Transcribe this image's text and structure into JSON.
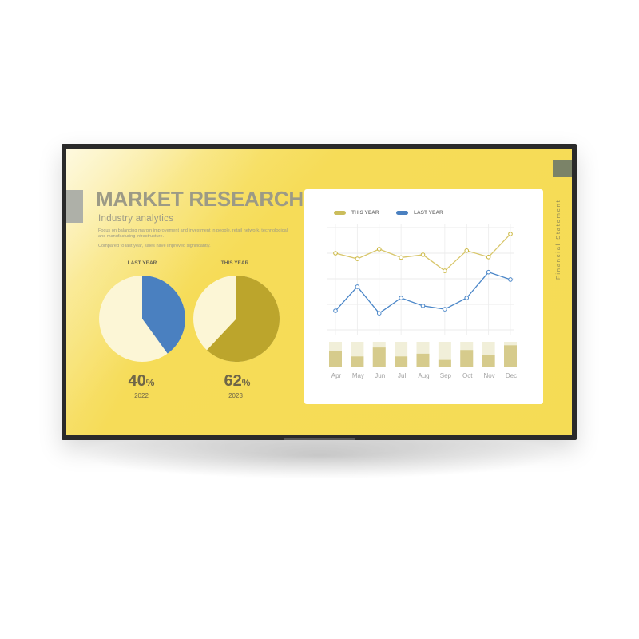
{
  "header": {
    "title": "MARKET RESEARCH",
    "subtitle": "Industry analytics",
    "description": "Focus on balancing margin improvement and investment in people, retail network, technological and manufacturing infrastructure.",
    "note": "Compared to last year, sales have improved significantly.",
    "side_label": "Financial Statement"
  },
  "pies": [
    {
      "label": "LAST YEAR",
      "value": 40,
      "percent_text": "40",
      "unit": "%",
      "year": "2022",
      "color": "#4a80c0",
      "rest_color": "#fcf6d6"
    },
    {
      "label": "THIS YEAR",
      "value": 62,
      "percent_text": "62",
      "unit": "%",
      "year": "2023",
      "color": "#bca52c",
      "rest_color": "#fcf6d6"
    }
  ],
  "colors": {
    "screen": "#f5dc55",
    "this_year": "#d8c66a",
    "last_year": "#4a86c8",
    "bar_fill": "#d6cb8c",
    "bar_track": "#f1efd9"
  },
  "chart_data": {
    "type": "line",
    "legend_position": "top-left",
    "grid": true,
    "categories": [
      "Apr",
      "May",
      "Jun",
      "Jul",
      "Aug",
      "Sep",
      "Oct",
      "Nov",
      "Dec"
    ],
    "ylim": [
      0,
      4
    ],
    "series": [
      {
        "name": "THIS YEAR",
        "values": [
          3.0,
          2.78,
          3.16,
          2.83,
          2.94,
          2.31,
          3.1,
          2.85,
          3.75
        ]
      },
      {
        "name": "LAST YEAR",
        "values": [
          0.75,
          1.69,
          0.65,
          1.25,
          0.94,
          0.81,
          1.25,
          2.26,
          1.97
        ]
      }
    ],
    "bars": {
      "type": "bar",
      "max": 1,
      "values": [
        0.64,
        0.41,
        0.77,
        0.41,
        0.52,
        0.27,
        0.67,
        0.46,
        0.86
      ]
    }
  }
}
